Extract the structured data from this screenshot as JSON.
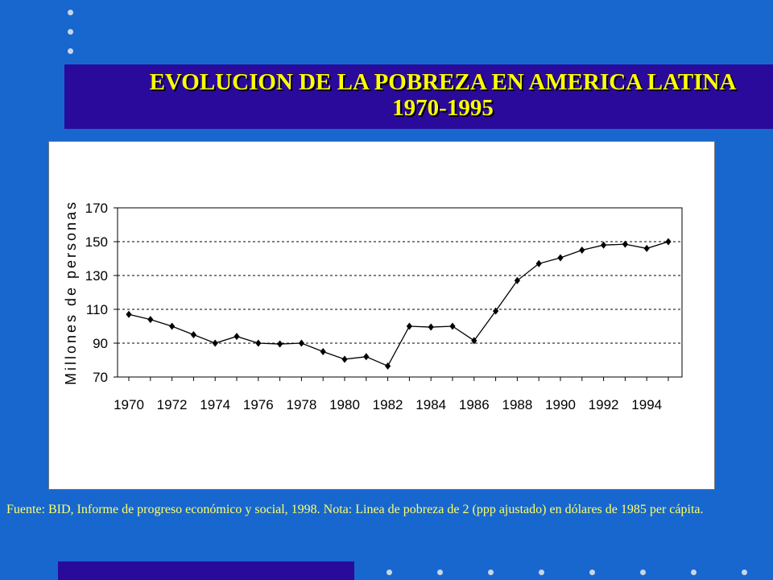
{
  "slide": {
    "title_line1": "EVOLUCION DE LA POBREZA EN AMERICA LATINA",
    "title_line2": "1970-1995",
    "source_note": "Fuente: BID, Informe de progreso económico y social, 1998. Nota: Linea de pobreza de 2 (ppp ajustado) en dólares de 1985 per cápita.",
    "colors": {
      "background": "#1767cf",
      "title_box": "#2a0a9a",
      "title_text": "#ffff00",
      "note_text": "#ffff66"
    }
  },
  "chart_data": {
    "type": "line",
    "title": "",
    "xlabel": "",
    "ylabel": "Millones de personas",
    "x": [
      1970,
      1971,
      1972,
      1973,
      1974,
      1975,
      1976,
      1977,
      1978,
      1979,
      1980,
      1981,
      1982,
      1983,
      1984,
      1985,
      1986,
      1987,
      1988,
      1989,
      1990,
      1991,
      1992,
      1993,
      1994,
      1995
    ],
    "series": [
      {
        "values": [
          107,
          104,
          100,
          95,
          90,
          94,
          90,
          89.5,
          90,
          85,
          80.5,
          82,
          76.5,
          100,
          99.5,
          100,
          91.5,
          109,
          127,
          137,
          140.5,
          145,
          148,
          148.5,
          146,
          150
        ]
      }
    ],
    "xticks": [
      "1970",
      "1972",
      "1974",
      "1976",
      "1978",
      "1980",
      "1982",
      "1984",
      "1986",
      "1988",
      "1990",
      "1992",
      "1994"
    ],
    "yticks": [
      "70",
      "90",
      "110",
      "130",
      "150",
      "170"
    ],
    "ylim": [
      70,
      170
    ],
    "grid": "horizontal dashed",
    "marker": "diamond"
  }
}
